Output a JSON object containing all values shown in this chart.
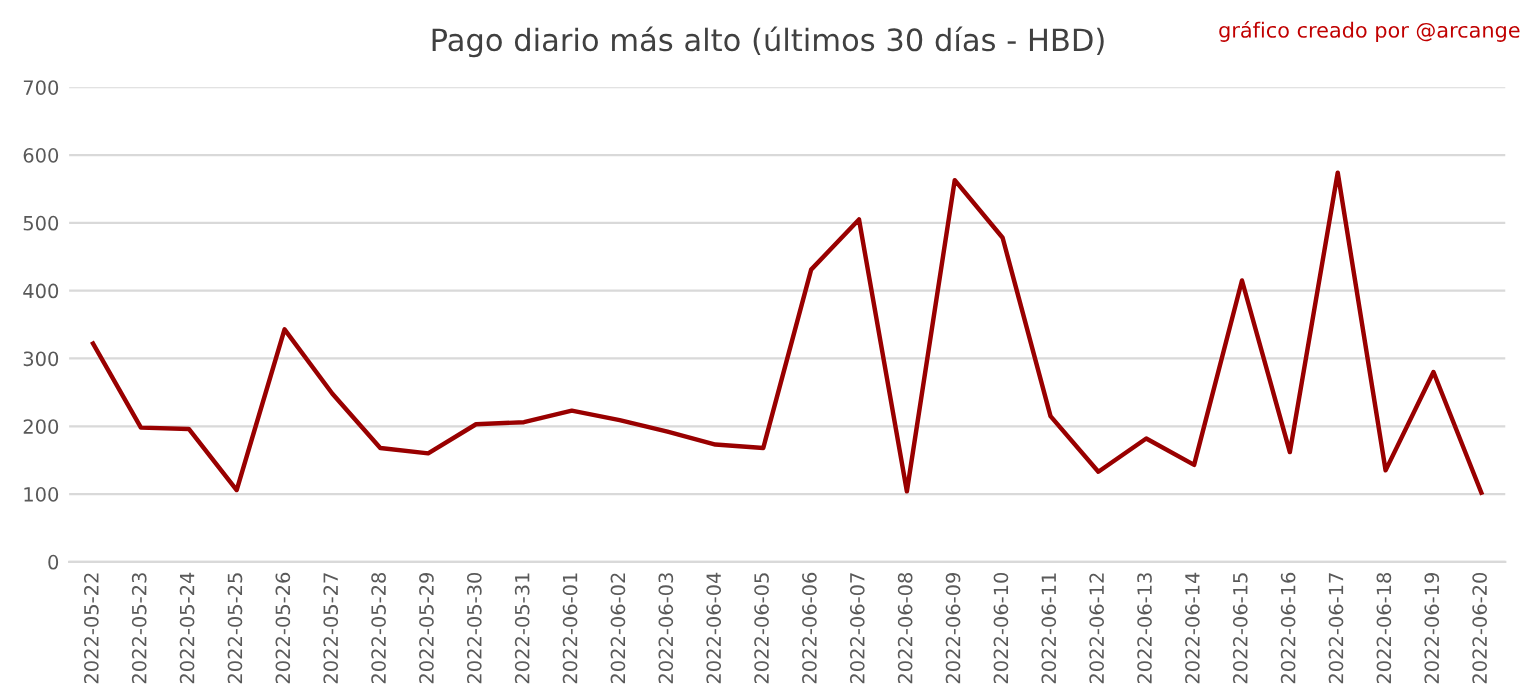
{
  "chart_data": {
    "type": "line",
    "title": "Pago diario más alto (últimos 30 días - HBD)",
    "annotations": [
      "gráfico creado por @arcange"
    ],
    "categories": [
      "2022-05-22",
      "2022-05-23",
      "2022-05-24",
      "2022-05-25",
      "2022-05-26",
      "2022-05-27",
      "2022-05-28",
      "2022-05-29",
      "2022-05-30",
      "2022-05-31",
      "2022-06-01",
      "2022-06-02",
      "2022-06-03",
      "2022-06-04",
      "2022-06-05",
      "2022-06-06",
      "2022-06-07",
      "2022-06-08",
      "2022-06-09",
      "2022-06-10",
      "2022-06-11",
      "2022-06-12",
      "2022-06-13",
      "2022-06-14",
      "2022-06-15",
      "2022-06-16",
      "2022-06-17",
      "2022-06-18",
      "2022-06-19",
      "2022-06-20"
    ],
    "series": [
      {
        "color": "#990000",
        "values": [
          322,
          198,
          196,
          106,
          343,
          248,
          168,
          160,
          203,
          206,
          223,
          209,
          192,
          173,
          168,
          431,
          505,
          104,
          563,
          478,
          215,
          133,
          182,
          143,
          415,
          162,
          574,
          135,
          280,
          102
        ]
      }
    ],
    "ylim": [
      0,
      700
    ],
    "yticks": [
      0,
      100,
      200,
      300,
      400,
      500,
      600,
      700
    ],
    "grid": "y",
    "marker": "none",
    "line_style": "solid"
  }
}
